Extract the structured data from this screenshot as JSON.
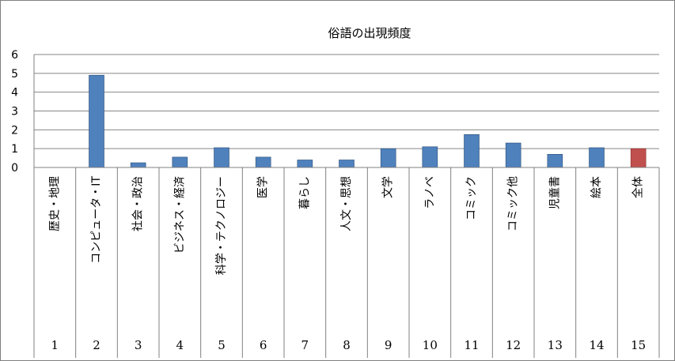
{
  "chart_data": {
    "type": "bar",
    "title": "俗語の出現頻度",
    "xlabel": "",
    "ylabel": "",
    "ylim": [
      0,
      6
    ],
    "yticks": [
      "0",
      "1",
      "2",
      "3",
      "4",
      "5",
      "6"
    ],
    "grid": true,
    "categories": [
      "1",
      "2",
      "3",
      "4",
      "5",
      "6",
      "7",
      "8",
      "9",
      "10",
      "11",
      "12",
      "13",
      "14",
      "15"
    ],
    "category_labels": [
      "歴史・地理",
      "コンピュータ・IT",
      "社会・政治",
      "ビジネス・経済",
      "科学・テクノロジー",
      "医学",
      "暮らし",
      "人文・思想",
      "文学",
      "ラノベ",
      "コミック",
      "コミック他",
      "児童書",
      "絵本",
      "全体"
    ],
    "values": [
      0,
      4.9,
      0.25,
      0.55,
      1.05,
      0.55,
      0.4,
      0.4,
      1.0,
      1.1,
      1.75,
      1.3,
      0.7,
      1.05,
      1.0
    ],
    "colors": {
      "bar": "#4f81bd",
      "bar_highlight": "#c0504d",
      "bar_outline": "#2c4d75",
      "highlight_outline": "#8b2d2b",
      "grid": "#868686",
      "table_line": "#808080"
    },
    "highlight_index": 14
  }
}
